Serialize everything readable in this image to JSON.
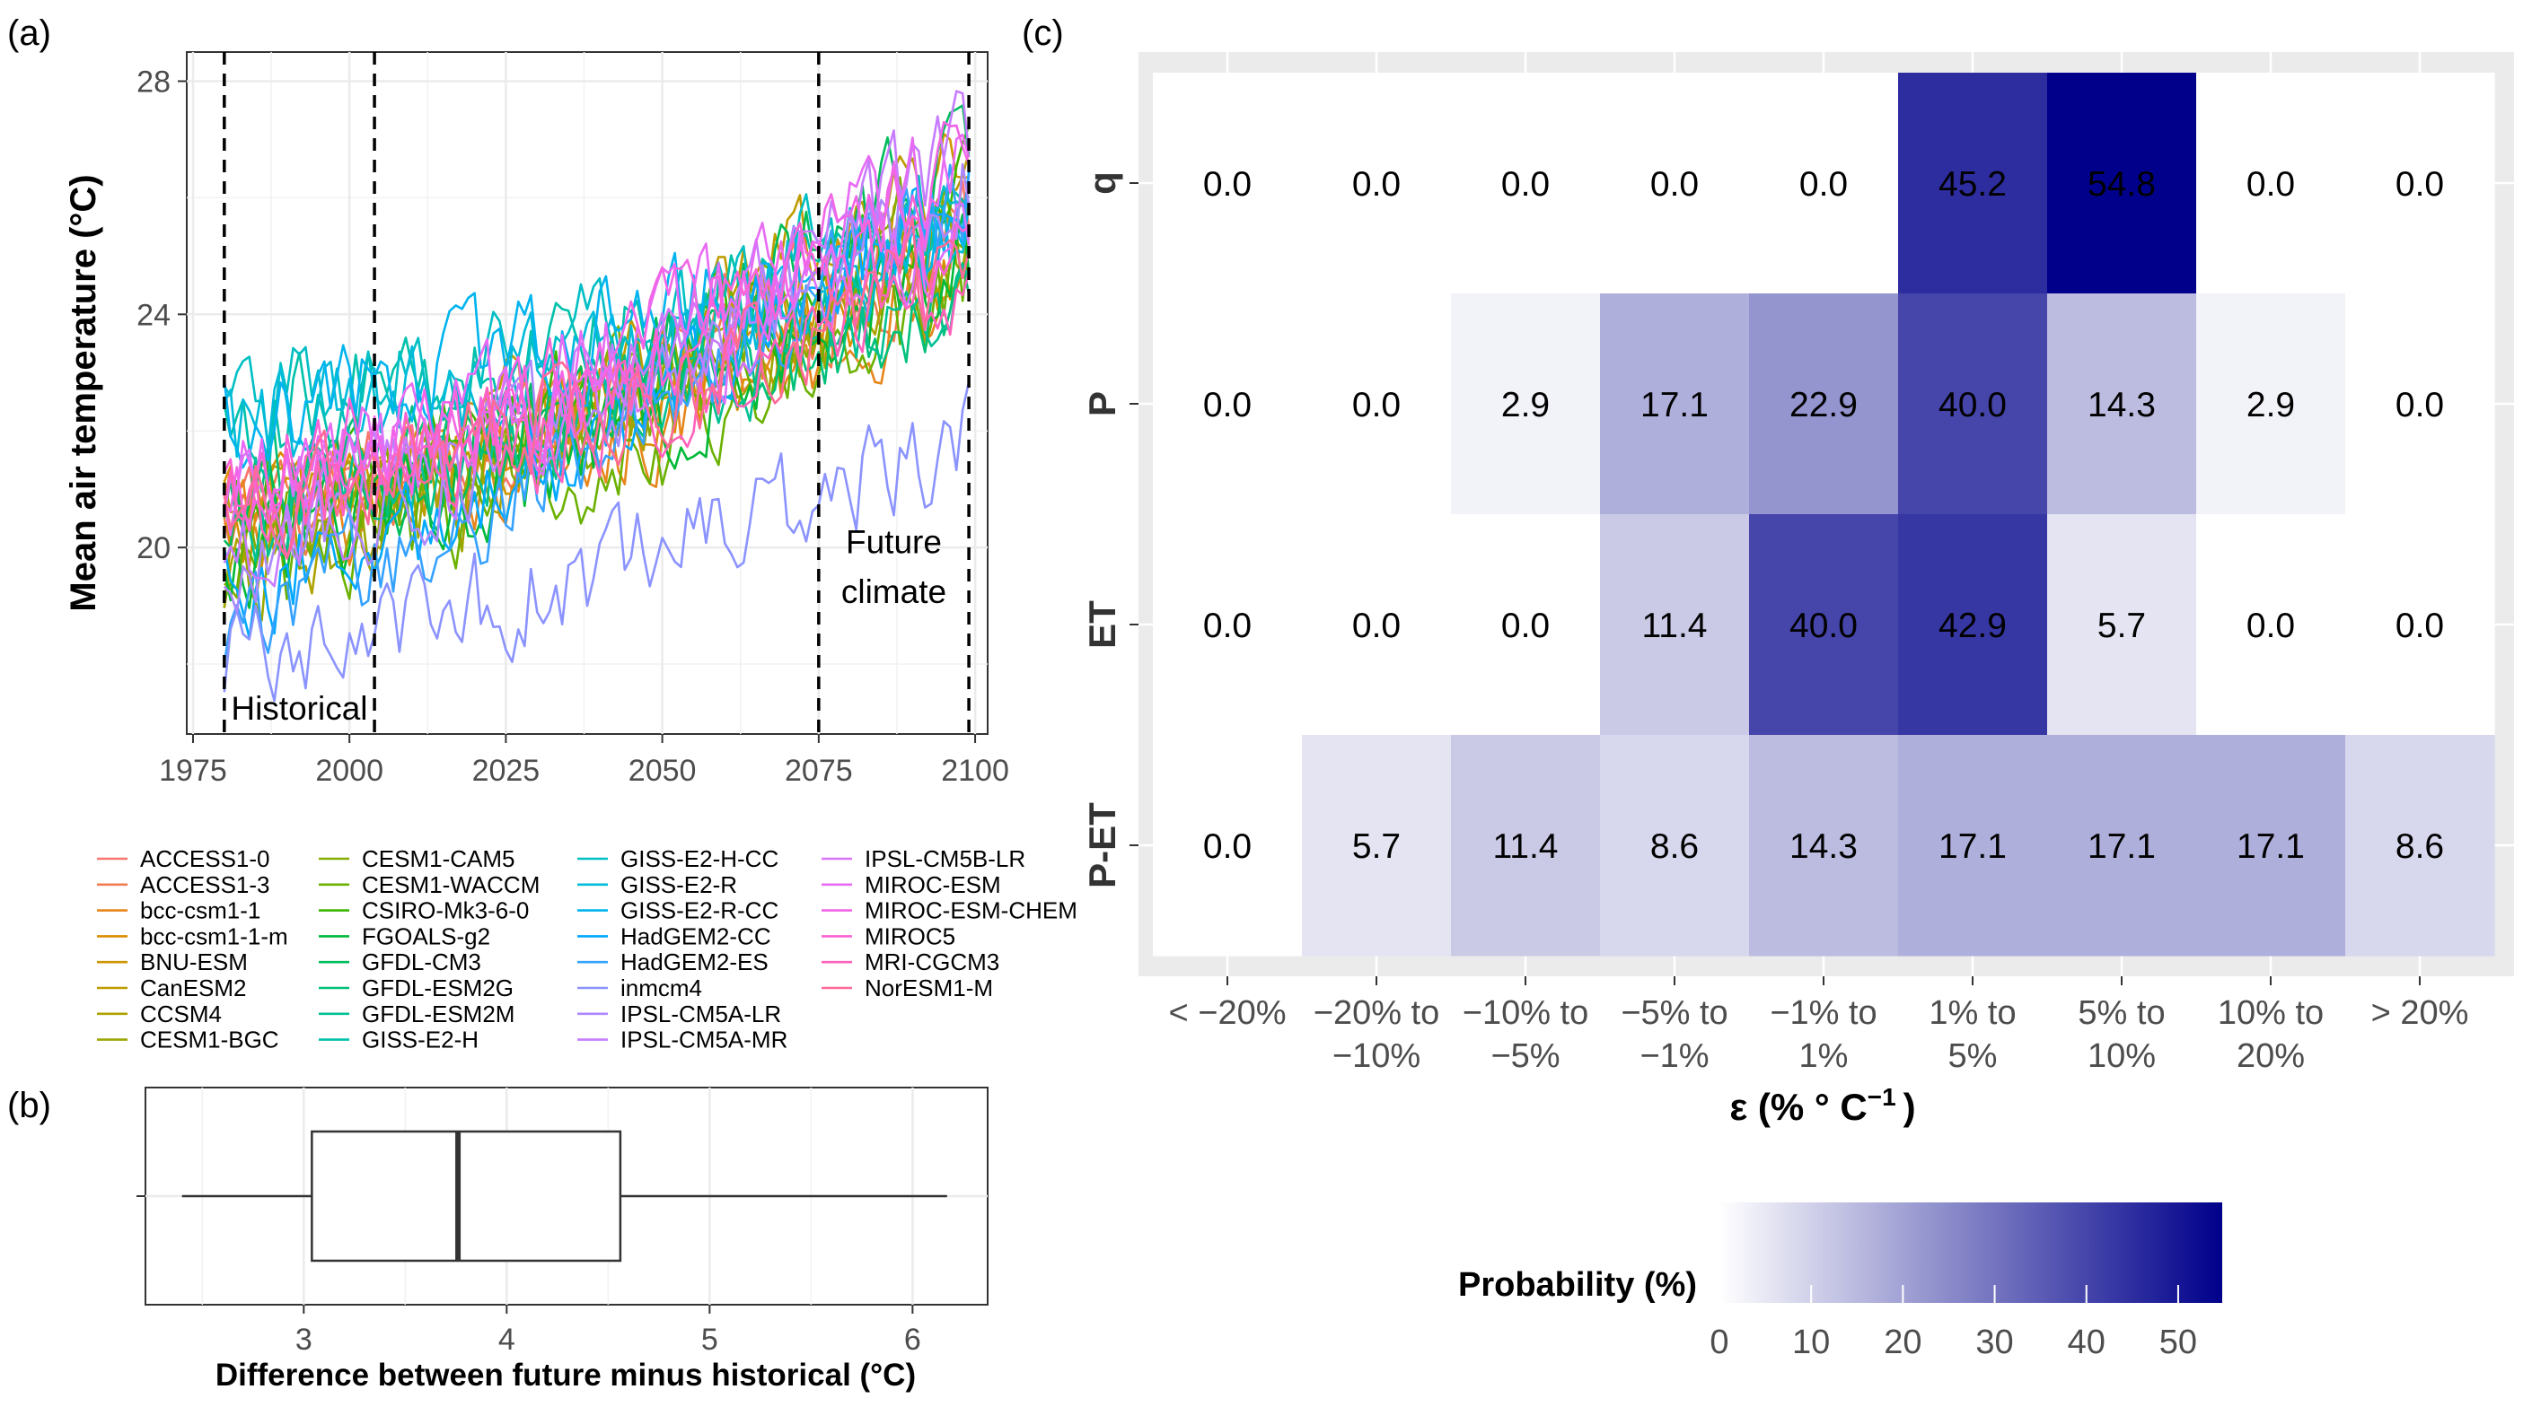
{
  "colors": {
    "panel_bg": "#EBEBEB",
    "grid": "#EBEBEB",
    "axis_text": "#4D4D4D",
    "heat_low": "#FFFFFF",
    "heat_high": "#00008B"
  },
  "chart_data": [
    {
      "panel": "(a)",
      "type": "line",
      "ylabel": "Mean air temperature (°C)",
      "xlim": [
        1974,
        2102
      ],
      "ylim": [
        16.8,
        28.5
      ],
      "xticks": [
        1975,
        2000,
        2025,
        2050,
        2075,
        2100
      ],
      "yticks": [
        20,
        24,
        28
      ],
      "vlines": [
        1980,
        2004,
        2075,
        2099
      ],
      "annotations": [
        {
          "text": "Historical",
          "x": 1992,
          "y": 17.05
        },
        {
          "text": "Future",
          "x": 2087,
          "y": 19.9
        },
        {
          "text": "climate",
          "x": 2087,
          "y": 19.05
        }
      ],
      "grid": true,
      "legend_position": "bottom",
      "x_start": 1980,
      "x_end": 2099,
      "series": [
        {
          "name": "ACCESS1-0",
          "color": "#F8766D",
          "start": 20.5,
          "end": 25.9
        },
        {
          "name": "ACCESS1-3",
          "color": "#F17D50",
          "start": 20.2,
          "end": 25.5
        },
        {
          "name": "bcc-csm1-1",
          "color": "#E7861B",
          "start": 20.0,
          "end": 24.6
        },
        {
          "name": "bcc-csm1-1-m",
          "color": "#DB8E00",
          "start": 20.6,
          "end": 25.0
        },
        {
          "name": "BNU-ESM",
          "color": "#CE9600",
          "start": 20.3,
          "end": 26.4
        },
        {
          "name": "CanESM2",
          "color": "#BE9C00",
          "start": 20.4,
          "end": 26.9
        },
        {
          "name": "CCSM4",
          "color": "#AEA200",
          "start": 19.7,
          "end": 25.6
        },
        {
          "name": "CESM1-BGC",
          "color": "#9CA700",
          "start": 19.6,
          "end": 25.4
        },
        {
          "name": "CESM1-CAM5",
          "color": "#86AC00",
          "start": 19.9,
          "end": 26.2
        },
        {
          "name": "CESM1-WACCM",
          "color": "#6BB100",
          "start": 19.5,
          "end": 24.6
        },
        {
          "name": "CSIRO-Mk3-6-0",
          "color": "#3DB600",
          "start": 20.8,
          "end": 26.0
        },
        {
          "name": "FGOALS-g2",
          "color": "#00BA38",
          "start": 19.8,
          "end": 25.1
        },
        {
          "name": "GFDL-CM3",
          "color": "#00BD5C",
          "start": 20.2,
          "end": 26.9
        },
        {
          "name": "GFDL-ESM2G",
          "color": "#00C07A",
          "start": 20.8,
          "end": 24.6
        },
        {
          "name": "GFDL-ESM2M",
          "color": "#00C194",
          "start": 20.5,
          "end": 24.9
        },
        {
          "name": "GISS-E2-H",
          "color": "#00C1AB",
          "start": 22.2,
          "end": 25.9
        },
        {
          "name": "GISS-E2-H-CC",
          "color": "#00BFC4",
          "start": 22.4,
          "end": 26.1
        },
        {
          "name": "GISS-E2-R",
          "color": "#00BBDA",
          "start": 22.0,
          "end": 25.6
        },
        {
          "name": "GISS-E2-R-CC",
          "color": "#00B4EF",
          "start": 22.3,
          "end": 25.8
        },
        {
          "name": "HadGEM2-CC",
          "color": "#00A9FF",
          "start": 19.3,
          "end": 26.4
        },
        {
          "name": "HadGEM2-ES",
          "color": "#35A2FF",
          "start": 18.8,
          "end": 26.2
        },
        {
          "name": "inmcm4",
          "color": "#8B93FF",
          "start": 18.2,
          "end": 21.9
        },
        {
          "name": "IPSL-CM5A-LR",
          "color": "#AC88FF",
          "start": 19.9,
          "end": 26.6
        },
        {
          "name": "IPSL-CM5A-MR",
          "color": "#C77CFF",
          "start": 20.2,
          "end": 27.0
        },
        {
          "name": "IPSL-CM5B-LR",
          "color": "#DA72FB",
          "start": 20.9,
          "end": 25.4
        },
        {
          "name": "MIROC-ESM",
          "color": "#E76BF3",
          "start": 21.0,
          "end": 26.9
        },
        {
          "name": "MIROC-ESM-CHEM",
          "color": "#F265E7",
          "start": 20.9,
          "end": 26.6
        },
        {
          "name": "MIROC5",
          "color": "#FA62D7",
          "start": 21.3,
          "end": 25.6
        },
        {
          "name": "MRI-CGCM3",
          "color": "#FF62BC",
          "start": 20.6,
          "end": 24.8
        },
        {
          "name": "NorESM1-M",
          "color": "#FF6A98",
          "start": 20.7,
          "end": 25.0
        }
      ]
    },
    {
      "panel": "(b)",
      "type": "box",
      "xlabel": "Difference between future minus historical (°C)",
      "xlim": [
        2.22,
        6.37
      ],
      "xticks": [
        3,
        4,
        5,
        6
      ],
      "whisker_low": 2.4,
      "q1": 3.04,
      "median": 3.76,
      "q3": 4.56,
      "whisker_high": 6.17,
      "grid": true
    },
    {
      "panel": "(c)",
      "type": "heatmap",
      "xlabel": "ε (% ° C",
      "xlabel_sup": "−1",
      "xlabel_end": ")",
      "x_categories": [
        [
          "< −20%"
        ],
        [
          "−20% to",
          "−10%"
        ],
        [
          "−10% to",
          "−5%"
        ],
        [
          "−5% to",
          "−1%"
        ],
        [
          "−1% to",
          "1%"
        ],
        [
          "1% to",
          "5%"
        ],
        [
          "5% to",
          "10%"
        ],
        [
          "10% to",
          "20%"
        ],
        [
          "> 20%"
        ]
      ],
      "y_categories": [
        "q",
        "P",
        "ET",
        "P-ET"
      ],
      "values": [
        [
          0.0,
          0.0,
          0.0,
          0.0,
          0.0,
          45.2,
          54.8,
          0.0,
          0.0
        ],
        [
          0.0,
          0.0,
          2.9,
          17.1,
          22.9,
          40.0,
          14.3,
          2.9,
          0.0
        ],
        [
          0.0,
          0.0,
          0.0,
          11.4,
          40.0,
          42.9,
          5.7,
          0.0,
          0.0
        ],
        [
          0.0,
          5.7,
          11.4,
          8.6,
          14.3,
          17.1,
          17.1,
          17.1,
          8.6
        ]
      ],
      "value_labels": [
        [
          "0.0",
          "0.0",
          "0.0",
          "0.0",
          "0.0",
          "45.2",
          "54.8",
          "0.0",
          "0.0"
        ],
        [
          "0.0",
          "0.0",
          "2.9",
          "17.1",
          "22.9",
          "40.0",
          "14.3",
          "2.9",
          "0.0"
        ],
        [
          "0.0",
          "0.0",
          "0.0",
          "11.4",
          "40.0",
          "42.9",
          "5.7",
          "0.0",
          "0.0"
        ],
        [
          "0.0",
          "5.7",
          "11.4",
          "8.6",
          "14.3",
          "17.1",
          "17.1",
          "17.1",
          "8.6"
        ]
      ],
      "color_scale": {
        "title": "Probability (%)",
        "min": 0,
        "max": 54.8,
        "ticks": [
          0,
          10,
          20,
          30,
          40,
          50
        ],
        "low": "#FFFFFF",
        "high": "#00008B"
      },
      "legend_position": "bottom"
    }
  ]
}
